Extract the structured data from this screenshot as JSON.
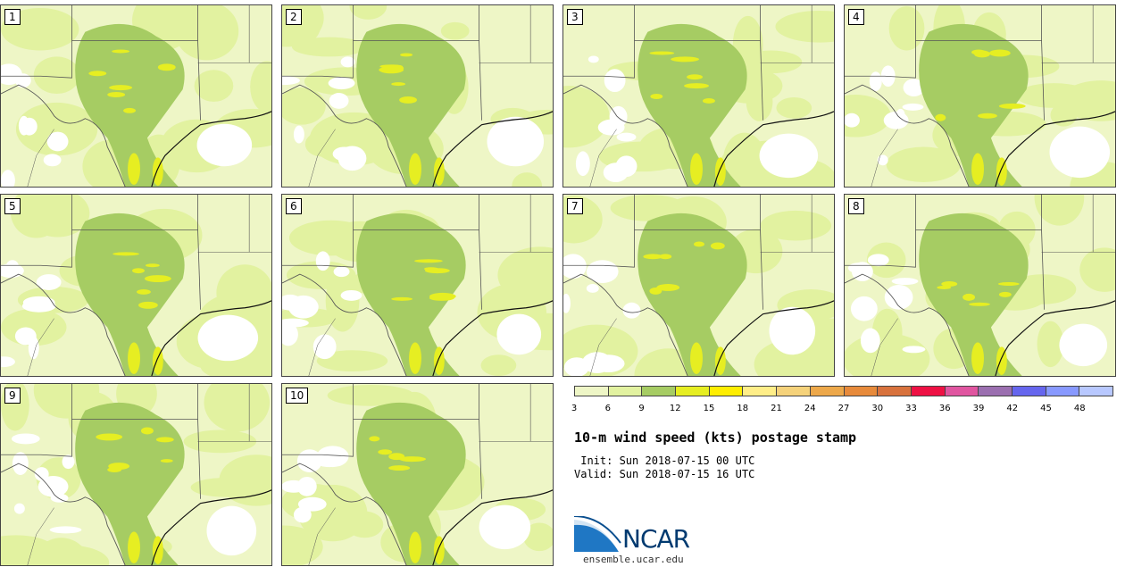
{
  "stamps": [
    {
      "label": "1"
    },
    {
      "label": "2"
    },
    {
      "label": "3"
    },
    {
      "label": "4"
    },
    {
      "label": "5"
    },
    {
      "label": "6"
    },
    {
      "label": "7"
    },
    {
      "label": "8"
    },
    {
      "label": "9"
    },
    {
      "label": "10"
    }
  ],
  "colorbar": {
    "colors": [
      "#eef6c6",
      "#e2f2a0",
      "#a6cc63",
      "#e6ee22",
      "#ffee00",
      "#ffee88",
      "#f5d27a",
      "#eda84a",
      "#e78a3b",
      "#d8723d",
      "#ee1144",
      "#e055a0",
      "#9b6fb0",
      "#6666ee",
      "#8899ff",
      "#b8c8ff"
    ],
    "ticks": [
      "3",
      "6",
      "9",
      "12",
      "15",
      "18",
      "21",
      "24",
      "27",
      "30",
      "33",
      "36",
      "39",
      "42",
      "45",
      "48"
    ]
  },
  "title": "10-m wind speed (kts) postage stamp",
  "init_line": " Init: Sun 2018-07-15 00 UTC",
  "valid_line": "Valid: Sun 2018-07-15 16 UTC",
  "logo": {
    "name": "NCAR",
    "url": "ensemble.ucar.edu"
  },
  "map_colors": {
    "background": "#eef6c6",
    "light": "#e2f2a0",
    "medium": "#a6cc63",
    "bright": "#e6ee22",
    "land_white": "#ffffff",
    "border": "#555555"
  }
}
